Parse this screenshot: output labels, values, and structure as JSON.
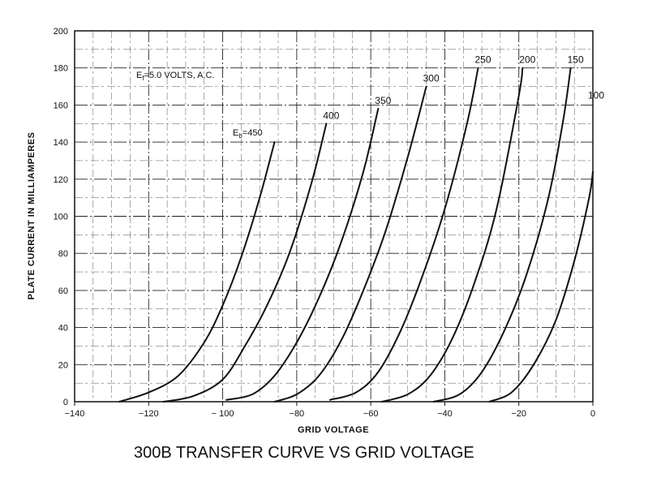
{
  "chart_data": {
    "type": "line",
    "title": "300B TRANSFER CURVE VS GRID VOLTAGE",
    "xlabel": "GRID VOLTAGE",
    "ylabel": "PLATE CURRENT IN MILLIAMPERES",
    "xlim": [
      -140,
      0
    ],
    "ylim": [
      0,
      200
    ],
    "xticks": [
      -140,
      -120,
      -100,
      -80,
      -60,
      -40,
      -20,
      0
    ],
    "xtick_labels": [
      "−140",
      "−120",
      "− 100",
      "−80",
      "−60",
      "−40",
      "−20",
      "0"
    ],
    "yticks": [
      0,
      20,
      40,
      60,
      80,
      100,
      120,
      140,
      160,
      180,
      200
    ],
    "grid": true,
    "annotations": {
      "filament_main": "E",
      "filament_sub": "f",
      "filament_rest": "=5.0 VOLTS, A.C.",
      "plate_main": "E",
      "plate_sub": "b",
      "plate_rest": "=450"
    },
    "series": [
      {
        "name": "450",
        "x": [
          -128,
          -120,
          -112,
          -105,
          -100,
          -95,
          -90,
          -86
        ],
        "y": [
          0,
          5,
          14,
          32,
          52,
          78,
          110,
          140
        ]
      },
      {
        "name": "400",
        "x": [
          -116,
          -108,
          -100,
          -94,
          -88,
          -82,
          -76,
          -72
        ],
        "y": [
          0,
          3,
          12,
          30,
          52,
          80,
          118,
          150
        ]
      },
      {
        "name": "350",
        "x": [
          -99,
          -92,
          -86,
          -80,
          -74,
          -68,
          -62,
          -58
        ],
        "y": [
          1,
          4,
          14,
          32,
          56,
          86,
          124,
          158
        ]
      },
      {
        "name": "300",
        "x": [
          -86,
          -80,
          -74,
          -68,
          -62,
          -56,
          -50,
          -45
        ],
        "y": [
          0,
          4,
          14,
          33,
          60,
          92,
          132,
          170
        ]
      },
      {
        "name": "250",
        "x": [
          -71,
          -64,
          -58,
          -52,
          -46,
          -40,
          -34,
          -31
        ],
        "y": [
          1,
          5,
          16,
          38,
          68,
          104,
          150,
          180
        ]
      },
      {
        "name": "200",
        "x": [
          -57,
          -50,
          -44,
          -38,
          -32,
          -26,
          -20,
          -19
        ],
        "y": [
          0,
          4,
          14,
          34,
          64,
          104,
          165,
          180
        ]
      },
      {
        "name": "150",
        "x": [
          -43,
          -36,
          -30,
          -24,
          -18,
          -12,
          -8,
          -6
        ],
        "y": [
          0,
          4,
          16,
          38,
          68,
          110,
          152,
          180
        ]
      },
      {
        "name": "100",
        "x": [
          -28,
          -22,
          -16,
          -10,
          -5,
          -1,
          0
        ],
        "y": [
          0,
          5,
          20,
          44,
          76,
          110,
          124
        ]
      }
    ]
  }
}
